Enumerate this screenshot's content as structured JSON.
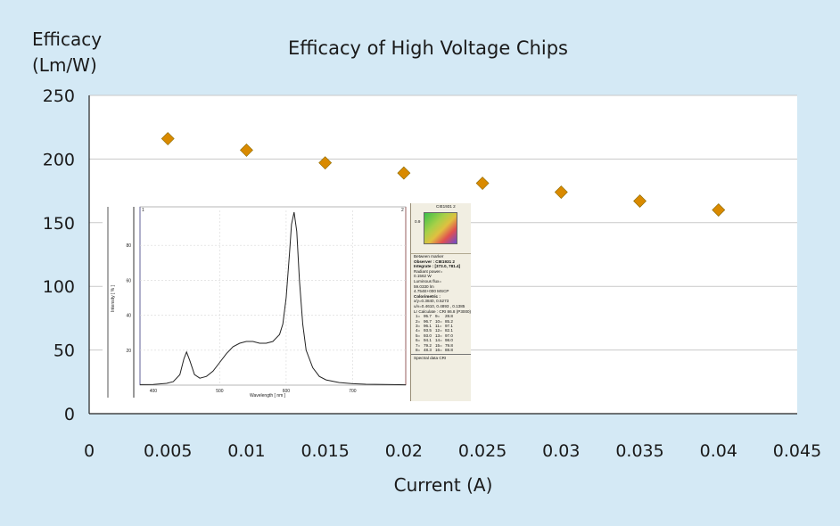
{
  "chart_data": {
    "type": "scatter",
    "title": "Efficacy of High Voltage Chips",
    "ylabel_line1": "Efficacy",
    "ylabel_line2": "(Lm/W)",
    "xlabel": "Current (A)",
    "xlim": [
      0,
      0.045
    ],
    "ylim": [
      0,
      250
    ],
    "x_ticks": [
      "0",
      "0.005",
      "0.01",
      "0.015",
      "0.02",
      "0.025",
      "0.03",
      "0.035",
      "0.04",
      "0.045"
    ],
    "y_ticks": [
      "0",
      "50",
      "100",
      "150",
      "200",
      "250"
    ],
    "grid": "horizontal",
    "marker": "diamond",
    "marker_color": "#d98a00",
    "series": [
      {
        "x": [
          0.005,
          0.01,
          0.015,
          0.02,
          0.025,
          0.03,
          0.035,
          0.04
        ],
        "y": [
          216,
          207,
          197,
          189,
          181,
          174,
          167,
          160
        ]
      }
    ]
  },
  "inset_spectrum": {
    "x_ticks": [
      "400",
      "500",
      "600",
      "700"
    ],
    "y_ticks": [
      "80",
      "60",
      "40",
      "20"
    ],
    "xlabel": "Wavelength [ nm ]",
    "ylabel": "Intensity [ % ]",
    "marker_left": "1",
    "marker_right": "2",
    "curve": [
      [
        380,
        0.3
      ],
      [
        400,
        0.4
      ],
      [
        420,
        1
      ],
      [
        430,
        2
      ],
      [
        440,
        6
      ],
      [
        446,
        15
      ],
      [
        450,
        19
      ],
      [
        455,
        14
      ],
      [
        462,
        6
      ],
      [
        470,
        4
      ],
      [
        480,
        5
      ],
      [
        490,
        8
      ],
      [
        500,
        13
      ],
      [
        510,
        18
      ],
      [
        520,
        22
      ],
      [
        530,
        24
      ],
      [
        540,
        25
      ],
      [
        550,
        25
      ],
      [
        560,
        24
      ],
      [
        570,
        24
      ],
      [
        580,
        25
      ],
      [
        590,
        29
      ],
      [
        595,
        35
      ],
      [
        600,
        50
      ],
      [
        605,
        75
      ],
      [
        608,
        92
      ],
      [
        612,
        99
      ],
      [
        616,
        88
      ],
      [
        620,
        60
      ],
      [
        625,
        35
      ],
      [
        630,
        20
      ],
      [
        640,
        10
      ],
      [
        650,
        5
      ],
      [
        660,
        3
      ],
      [
        680,
        1.5
      ],
      [
        700,
        0.8
      ],
      [
        720,
        0.5
      ],
      [
        760,
        0.3
      ],
      [
        780,
        0.2
      ]
    ]
  },
  "inset_panel": {
    "cie_label": "CIE1931 2",
    "cie_axis": "0.9",
    "between_label": "Between marker",
    "observer": "Observer : CIE1931 2",
    "integrate": "Integrate : [373.0, 781.4]",
    "radiant_label": "Radiant power=",
    "radiant_value": "0.1562 W",
    "luminous_label": "Luminous flux=",
    "luminous_value": "59.0330 lm",
    "lumi_extra": "4.754E+000 MSCP",
    "colorimetric": "Colorimetric :",
    "xy": "x/y=0.3840, 0.5273",
    "uv": "u/v=0.4610, 0.4893 , 0.1385",
    "cri": "Lr Calculate : CRI 86.8 (P3000)",
    "cri_rows": [
      [
        "1=",
        "95.7",
        "9=",
        "28.8"
      ],
      [
        "2=",
        "96.7",
        "10=",
        "85.2"
      ],
      [
        "3=",
        "96.1",
        "11=",
        "97.1"
      ],
      [
        "4=",
        "93.5",
        "12=",
        "82.1"
      ],
      [
        "5=",
        "93.0",
        "13=",
        "97.0"
      ],
      [
        "6=",
        "94.1",
        "14=",
        "98.0"
      ],
      [
        "7=",
        "79.2",
        "15=",
        "79.8"
      ],
      [
        "8=",
        "48.3",
        "16=",
        "88.8"
      ]
    ],
    "tab_label": "Spectral data  CRI"
  }
}
